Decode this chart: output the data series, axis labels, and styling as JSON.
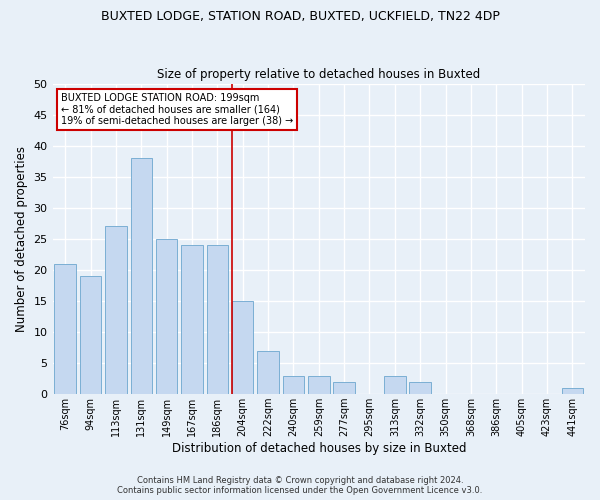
{
  "title1": "BUXTED LODGE, STATION ROAD, BUXTED, UCKFIELD, TN22 4DP",
  "title2": "Size of property relative to detached houses in Buxted",
  "xlabel": "Distribution of detached houses by size in Buxted",
  "ylabel": "Number of detached properties",
  "categories": [
    "76sqm",
    "94sqm",
    "113sqm",
    "131sqm",
    "149sqm",
    "167sqm",
    "186sqm",
    "204sqm",
    "222sqm",
    "240sqm",
    "259sqm",
    "277sqm",
    "295sqm",
    "313sqm",
    "332sqm",
    "350sqm",
    "368sqm",
    "386sqm",
    "405sqm",
    "423sqm",
    "441sqm"
  ],
  "values": [
    21,
    19,
    27,
    38,
    25,
    24,
    24,
    15,
    7,
    3,
    3,
    2,
    0,
    3,
    2,
    0,
    0,
    0,
    0,
    0,
    1
  ],
  "bar_color": "#c5d8f0",
  "bar_edge_color": "#7bafd4",
  "property_label": "BUXTED LODGE STATION ROAD: 199sqm",
  "annotation_line1": "← 81% of detached houses are smaller (164)",
  "annotation_line2": "19% of semi-detached houses are larger (38) →",
  "annotation_box_color": "#ffffff",
  "annotation_box_edge": "#cc0000",
  "vline_color": "#cc0000",
  "ylim": [
    0,
    50
  ],
  "yticks": [
    0,
    5,
    10,
    15,
    20,
    25,
    30,
    35,
    40,
    45,
    50
  ],
  "footer1": "Contains HM Land Registry data © Crown copyright and database right 2024.",
  "footer2": "Contains public sector information licensed under the Open Government Licence v3.0.",
  "bg_color": "#e8f0f8",
  "grid_color": "#ffffff",
  "vline_index": 7
}
